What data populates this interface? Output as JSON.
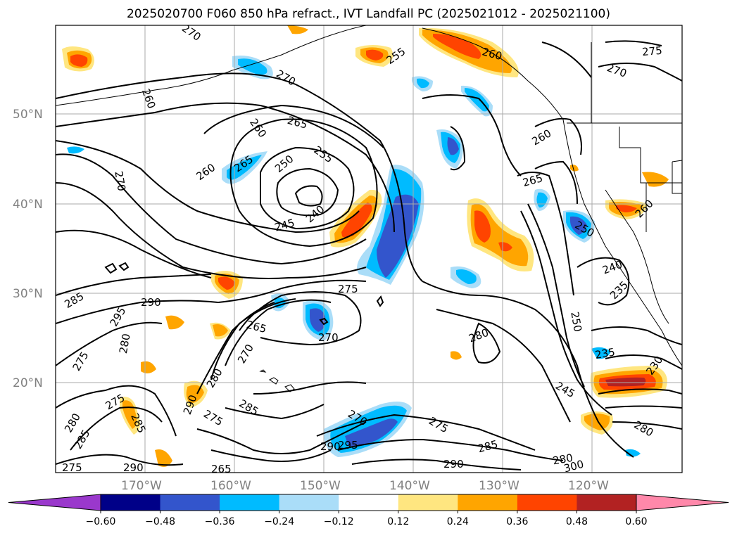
{
  "title": "2025020700 F060 850 hPa refract., IVT Landfall PC (2025021012 - 2025021100)",
  "lat_labels": [
    "50°N",
    "40°N",
    "30°N",
    "20°N"
  ],
  "lon_labels": [
    "170°W",
    "160°W",
    "150°W",
    "140°W",
    "130°W",
    "120°W"
  ],
  "colorbar": {
    "ticks": [
      "−0.60",
      "−0.48",
      "−0.36",
      "−0.24",
      "−0.12",
      "0.12",
      "0.24",
      "0.36",
      "0.48",
      "0.60"
    ],
    "colors": [
      "#9a38cc",
      "#000088",
      "#3355cc",
      "#00bbff",
      "#aaddf8",
      "#ffffff",
      "#ffe680",
      "#ffa500",
      "#ff4400",
      "#b22222",
      "#ff88aa"
    ]
  },
  "contour_labels": {
    "c1": "270",
    "c2": "260",
    "c3": "270",
    "c4": "255",
    "c5": "260",
    "c6": "275",
    "c7": "270",
    "c8": "265",
    "c9": "260",
    "c10": "265",
    "c11": "260",
    "c12": "250",
    "c13": "255",
    "c14": "270",
    "c15": "260",
    "c16": "265",
    "c17": "245",
    "c18": "240",
    "c19": "285",
    "c20": "290",
    "c21": "295",
    "c22": "280",
    "c23": "275",
    "c24": "265",
    "c25": "270",
    "c26": "270",
    "c27": "275",
    "c28": "280",
    "c29": "250",
    "c30": "260",
    "c31": "235",
    "c32": "240",
    "c33": "235",
    "c34": "230",
    "c35": "245",
    "c36": "275",
    "c37": "280",
    "c38": "285",
    "c39": "290",
    "c40": "280",
    "c41": "275",
    "c42": "270",
    "c43": "285",
    "c44": "295",
    "c45": "290",
    "c46": "275",
    "c47": "285",
    "c48": "275",
    "c49": "290",
    "c50": "290",
    "c51": "265",
    "c52": "300",
    "c53": "280",
    "c54": "285",
    "c55": "280",
    "c56": "250"
  }
}
